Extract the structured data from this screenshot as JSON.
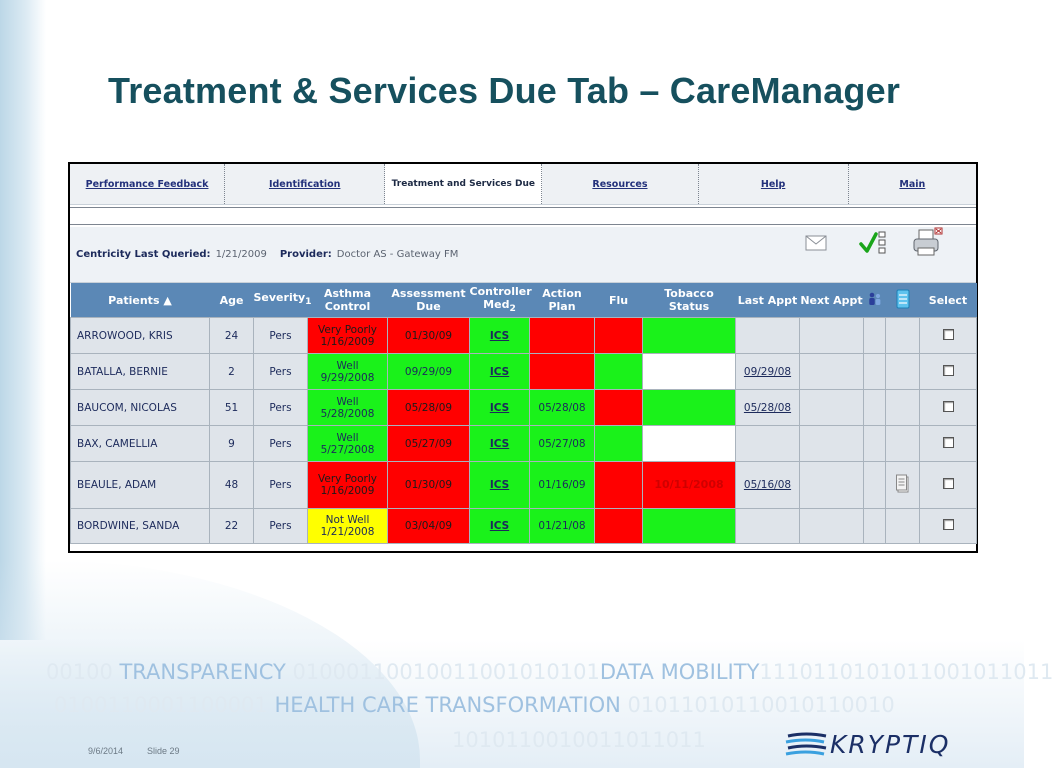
{
  "slide": {
    "title": "Treatment & Services Due Tab – CareManager",
    "date": "9/6/2014",
    "slide_number": "Slide 29"
  },
  "tabs": [
    {
      "label": "Performance Feedback"
    },
    {
      "label": "Identification"
    },
    {
      "label": "Treatment and Services Due",
      "active": true
    },
    {
      "label": "Resources"
    },
    {
      "label": "Help"
    },
    {
      "label": "Main"
    }
  ],
  "info": {
    "last_queried_label": "Centricity Last Queried:",
    "last_queried_value": "1/21/2009",
    "provider_label": "Provider:",
    "provider_value": "Doctor AS - Gateway FM",
    "icons": [
      "envelope-icon",
      "checklist-icon",
      "printer-icon"
    ]
  },
  "columns": {
    "patients": "Patients",
    "age": "Age",
    "severity": "Severity",
    "severity_sub": "1",
    "asthma_control": "Asthma Control",
    "assessment_due": "Assessment Due",
    "controller_med": "Controller Med",
    "controller_med_sub": "2",
    "action_plan": "Action Plan",
    "flu": "Flu",
    "tobacco_status": "Tobacco Status",
    "last_appt": "Last Appt",
    "next_appt": "Next Appt",
    "select": "Select"
  },
  "rows": [
    {
      "name": "ARROWOOD, KRIS",
      "age": "24",
      "severity": "Pers",
      "control": "Very Poorly",
      "control_date": "1/16/2009",
      "assessment": "01/30/09",
      "med": "ICS",
      "action": "",
      "flu": "",
      "tobacco": "",
      "last_appt": "",
      "next_appt": ""
    },
    {
      "name": "BATALLA, BERNIE",
      "age": "2",
      "severity": "Pers",
      "control": "Well",
      "control_date": "9/29/2008",
      "assessment": "09/29/09",
      "med": "ICS",
      "action": "",
      "flu": "",
      "tobacco": "",
      "last_appt": "09/29/08",
      "next_appt": ""
    },
    {
      "name": "BAUCOM, NICOLAS",
      "age": "51",
      "severity": "Pers",
      "control": "Well",
      "control_date": "5/28/2008",
      "assessment": "05/28/09",
      "med": "ICS",
      "action": "05/28/08",
      "flu": "",
      "tobacco": "",
      "last_appt": "05/28/08",
      "next_appt": ""
    },
    {
      "name": "BAX, CAMELLIA",
      "age": "9",
      "severity": "Pers",
      "control": "Well",
      "control_date": "5/27/2008",
      "assessment": "05/27/09",
      "med": "ICS",
      "action": "05/27/08",
      "flu": "",
      "tobacco": "",
      "last_appt": "",
      "next_appt": ""
    },
    {
      "name": "BEAULE, ADAM",
      "age": "48",
      "severity": "Pers",
      "control": "Very Poorly",
      "control_date": "1/16/2009",
      "assessment": "01/30/09",
      "med": "ICS",
      "action": "01/16/09",
      "flu": "",
      "tobacco": "10/11/2008",
      "last_appt": "05/16/08",
      "next_appt": ""
    },
    {
      "name": "BORDWINE, SANDA",
      "age": "22",
      "severity": "Pers",
      "control": "Not Well",
      "control_date": "1/21/2008",
      "assessment": "03/04/09",
      "med": "ICS",
      "action": "01/21/08",
      "flu": "",
      "tobacco": "",
      "last_appt": "",
      "next_appt": ""
    }
  ],
  "footer_banner": {
    "line1": [
      "00100 ",
      "TRANSPARENCY",
      " 01000110010011001010101",
      "DATA MOBILITY",
      "1110110101011001011011"
    ],
    "line2": [
      "0100110001100001 ",
      "HEALTH CARE TRANSFORMATION",
      " 01011010110010110010"
    ],
    "line3": "1010110010011011011",
    "logo_text": "KRYPTIQ"
  },
  "colors": {
    "red": "#ff0000",
    "green": "#1af21a",
    "yellow": "#ffff00",
    "header_blue": "#5b88b6",
    "title_teal": "#16505e"
  }
}
